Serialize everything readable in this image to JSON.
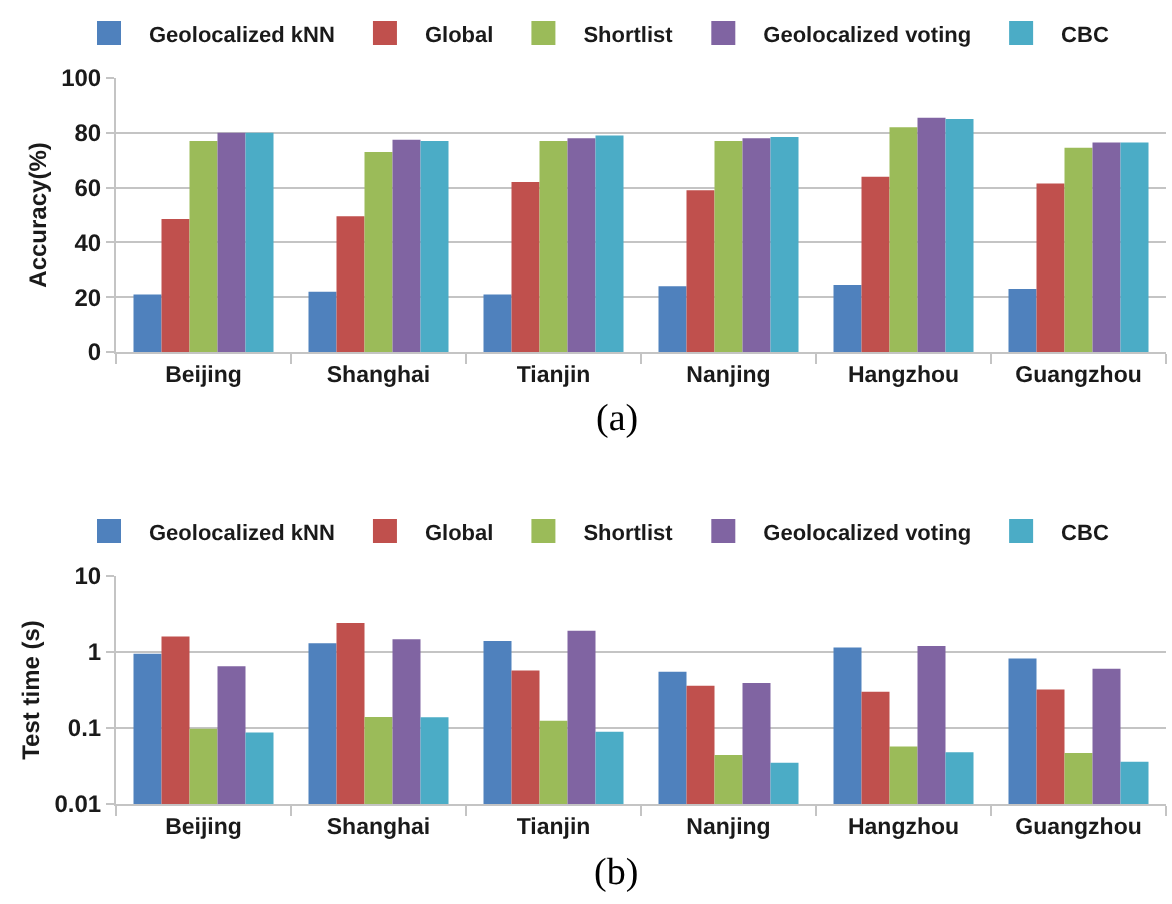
{
  "chart_data": [
    {
      "type": "bar",
      "categories": [
        "Beijing",
        "Shanghai",
        "Tianjin",
        "Nanjing",
        "Hangzhou",
        "Guangzhou"
      ],
      "ylabel": "Accuracy(%)",
      "ylim": [
        0,
        100
      ],
      "yticks": [
        0,
        20,
        40,
        60,
        80,
        100
      ],
      "grid": "y",
      "legend": "top",
      "annotations": [
        "(a)"
      ],
      "series": [
        {
          "name": "Geolocalized kNN",
          "color": "#4f81bd",
          "values": [
            21,
            22,
            21,
            24,
            24.5,
            23
          ]
        },
        {
          "name": "Global",
          "color": "#c0504d",
          "values": [
            48.5,
            49.5,
            62,
            59,
            64,
            61.5
          ]
        },
        {
          "name": "Shortlist",
          "color": "#9bbb59",
          "values": [
            77,
            73,
            77,
            77,
            82,
            74.5
          ]
        },
        {
          "name": "Geolocalized voting",
          "color": "#8064a2",
          "values": [
            80,
            77.5,
            78,
            78,
            85.5,
            76.5
          ]
        },
        {
          "name": "CBC",
          "color": "#4bacc6",
          "values": [
            80,
            77,
            79,
            78.5,
            85,
            76.5
          ]
        }
      ]
    },
    {
      "type": "bar",
      "categories": [
        "Beijing",
        "Shanghai",
        "Tianjin",
        "Nanjing",
        "Hangzhou",
        "Guangzhou"
      ],
      "ylabel": "Test time (s)",
      "log": "y",
      "ylim": [
        0.01,
        10
      ],
      "yticks": [
        0.01,
        0.1,
        1,
        10
      ],
      "grid": "y",
      "legend": "top",
      "annotations": [
        "(b)"
      ],
      "series": [
        {
          "name": "Geolocalized kNN",
          "color": "#4f81bd",
          "values": [
            0.95,
            1.3,
            1.4,
            0.55,
            1.15,
            0.82
          ]
        },
        {
          "name": "Global",
          "color": "#c0504d",
          "values": [
            1.6,
            2.4,
            0.57,
            0.36,
            0.3,
            0.32
          ]
        },
        {
          "name": "Shortlist",
          "color": "#9bbb59",
          "values": [
            0.098,
            0.14,
            0.125,
            0.044,
            0.057,
            0.047
          ]
        },
        {
          "name": "Geolocalized voting",
          "color": "#8064a2",
          "values": [
            0.65,
            1.47,
            1.9,
            0.39,
            1.2,
            0.6
          ]
        },
        {
          "name": "CBC",
          "color": "#4bacc6",
          "values": [
            0.087,
            0.138,
            0.089,
            0.035,
            0.048,
            0.036
          ]
        }
      ]
    }
  ]
}
